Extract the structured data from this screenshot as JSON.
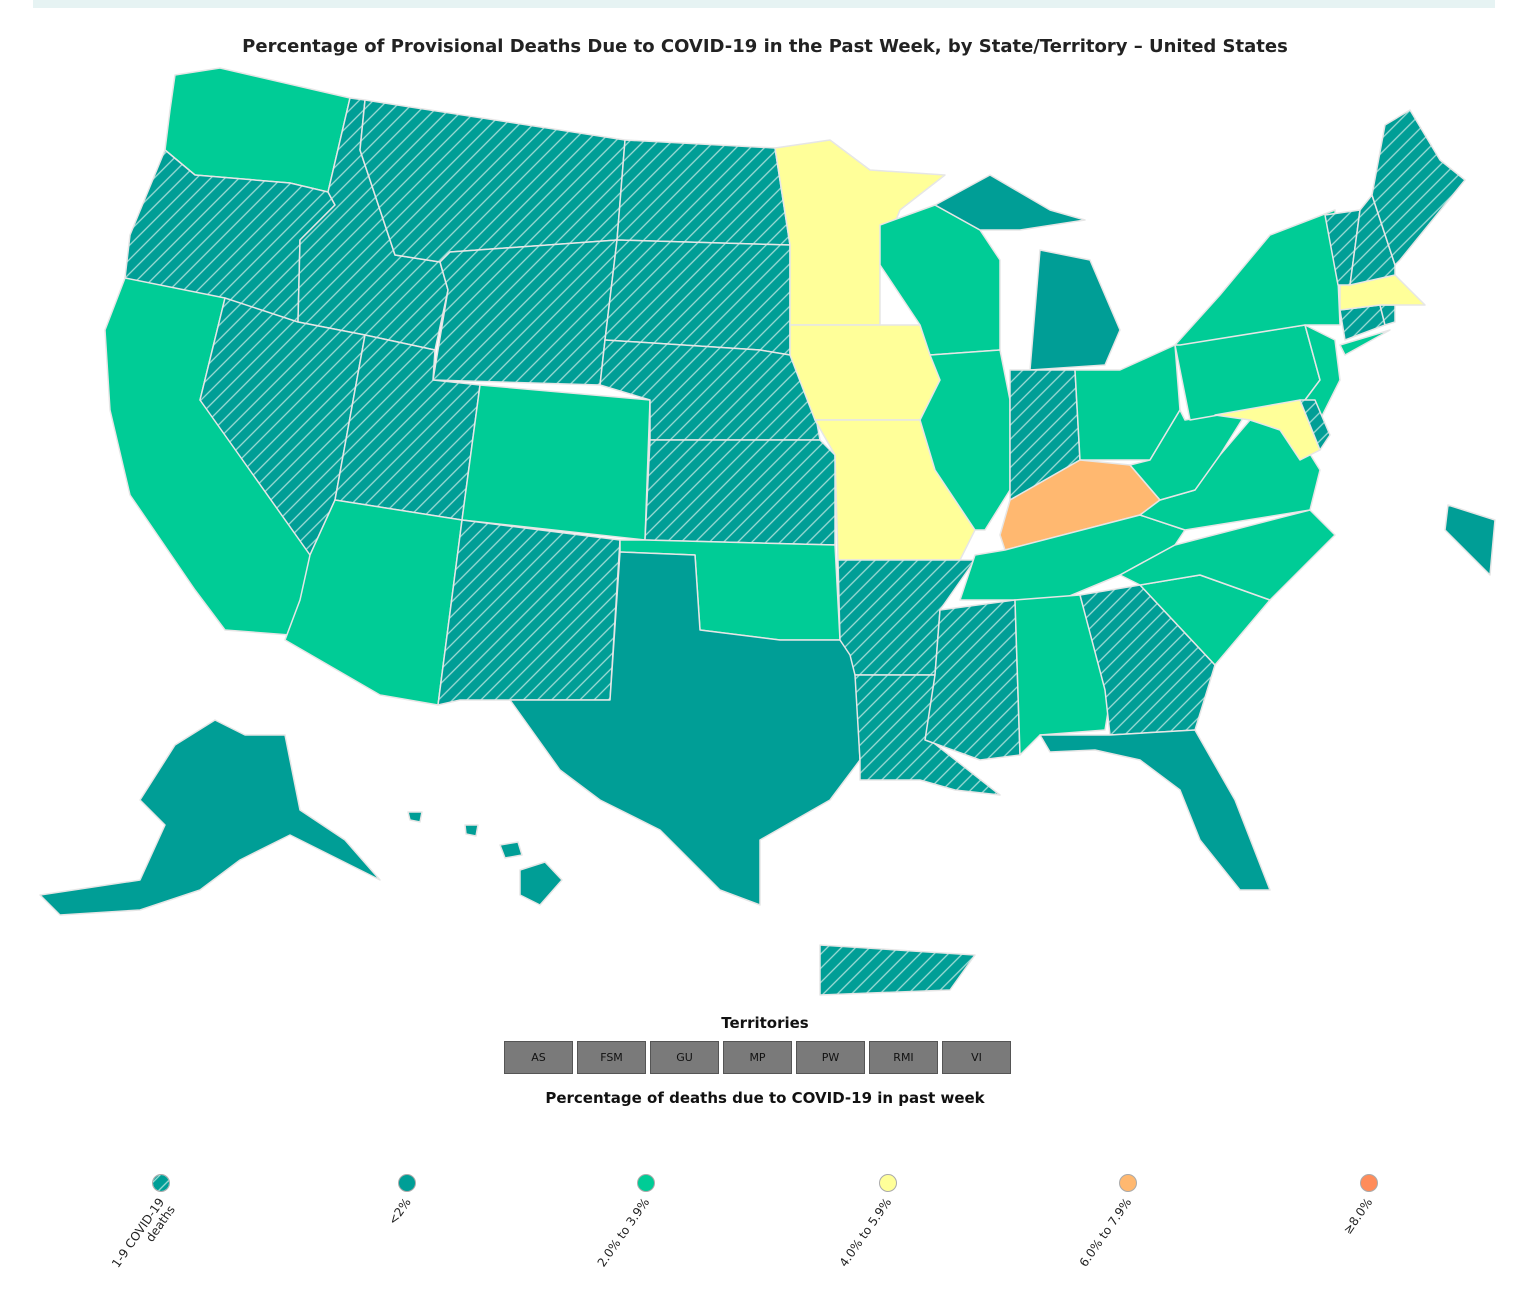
{
  "title": "Percentage of Provisional Deaths Due to COVID-19 in the Past Week, by State/Territory – United States",
  "colors": {
    "hatched": "#009e96",
    "lt2": "#009e96",
    "2to3.9": "#00cc96",
    "4to5.9": "#ffff99",
    "6to7.9": "#ffb870",
    "ge8": "#ff8c5a"
  },
  "states": {
    "WA": "2to3.9",
    "OR": "hatched",
    "CA": "2to3.9",
    "ID": "hatched",
    "NV": "hatched",
    "MT": "hatched",
    "WY": "hatched",
    "UT": "hatched",
    "AZ": "2to3.9",
    "CO": "2to3.9",
    "NM": "hatched",
    "ND": "hatched",
    "SD": "hatched",
    "NE": "hatched",
    "KS": "hatched",
    "OK": "2to3.9",
    "TX": "lt2",
    "MN": "4to5.9",
    "IA": "4to5.9",
    "MO": "4to5.9",
    "AR": "hatched",
    "LA": "hatched",
    "WI": "2to3.9",
    "IL": "2to3.9",
    "MI": "lt2",
    "IN": "hatched",
    "OH": "2to3.9",
    "KY": "6to7.9",
    "TN": "2to3.9",
    "MS": "hatched",
    "AL": "2to3.9",
    "GA": "hatched",
    "FL": "lt2",
    "SC": "2to3.9",
    "NC": "2to3.9",
    "VA": "2to3.9",
    "WV": "2to3.9",
    "PA": "2to3.9",
    "NY": "2to3.9",
    "NJ": "2to3.9",
    "MD": "4to5.9",
    "DE": "hatched",
    "CT": "hatched",
    "RI": "hatched",
    "MA": "4to5.9",
    "VT": "hatched",
    "NH": "hatched",
    "ME": "hatched",
    "AK": "lt2",
    "HI": "lt2",
    "PR": "hatched",
    "DC": "lt2"
  },
  "territories": {
    "title": "Territories",
    "buttons": [
      "AS",
      "FSM",
      "GU",
      "MP",
      "PW",
      "RMI",
      "VI"
    ]
  },
  "legend": {
    "title": "Percentage of deaths due to COVID-19 in past week",
    "items": [
      {
        "key": "hatched",
        "label": "1-9 COVID-19\ndeaths"
      },
      {
        "key": "lt2",
        "label": "<2%"
      },
      {
        "key": "2to3.9",
        "label": "2.0% to 3.9%"
      },
      {
        "key": "4to5.9",
        "label": "4.0% to 5.9%"
      },
      {
        "key": "6to7.9",
        "label": "6.0% to 7.9%"
      },
      {
        "key": "ge8",
        "label": "≥8.0%"
      }
    ]
  }
}
